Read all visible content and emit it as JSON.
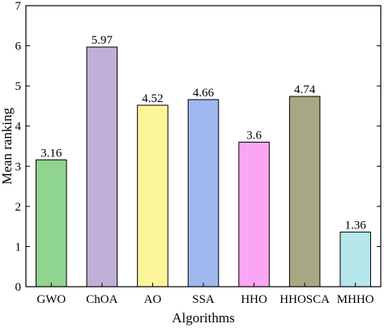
{
  "chart_data": {
    "type": "bar",
    "title": "",
    "xlabel": "Algorithms",
    "ylabel": "Mean ranking",
    "categories": [
      "GWO",
      "ChOA",
      "AO",
      "SSA",
      "HHO",
      "HHOSCA",
      "MHHO"
    ],
    "values": [
      3.16,
      5.97,
      4.52,
      4.66,
      3.6,
      4.74,
      1.36
    ],
    "value_labels": [
      "3.16",
      "5.97",
      "4.52",
      "4.66",
      "3.6",
      "4.74",
      "1.36"
    ],
    "colors": [
      "#8fd48f",
      "#c0b0d8",
      "#fbf59a",
      "#9fb8ef",
      "#fba6f5",
      "#a5a883",
      "#b5e6ec"
    ],
    "ylim": [
      0,
      7
    ],
    "yticks": [
      0,
      1,
      2,
      3,
      4,
      5,
      6,
      7
    ],
    "grid": false,
    "legend": "none"
  }
}
